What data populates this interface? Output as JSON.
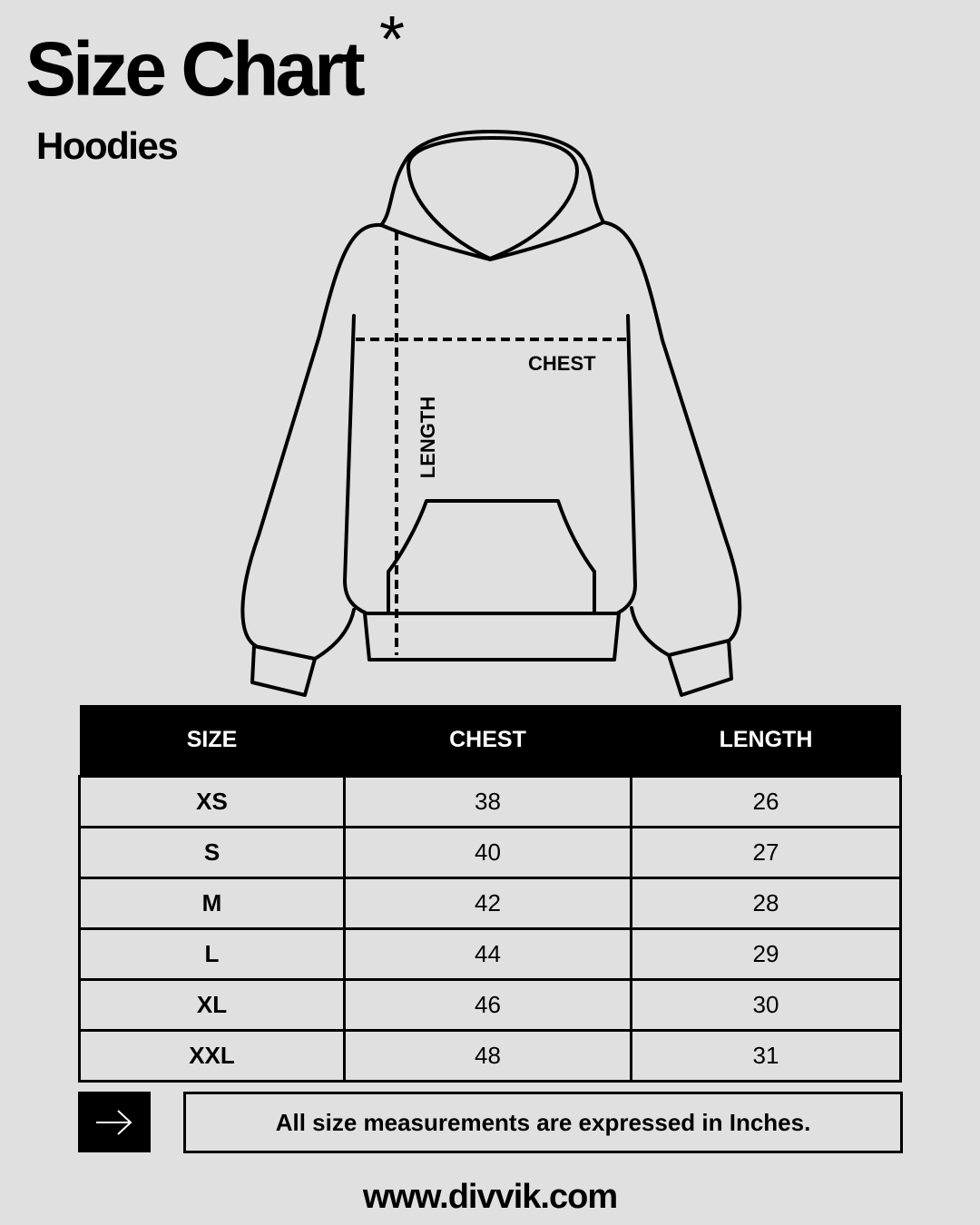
{
  "header": {
    "title": "Size Chart",
    "asterisk": "*",
    "subtitle": "Hoodies"
  },
  "diagram": {
    "chest_label": "CHEST",
    "length_label": "LENGTH"
  },
  "table": {
    "columns": [
      "SIZE",
      "CHEST",
      "LENGTH"
    ],
    "rows": [
      {
        "size": "XS",
        "chest": "38",
        "length": "26"
      },
      {
        "size": "S",
        "chest": "40",
        "length": "27"
      },
      {
        "size": "M",
        "chest": "42",
        "length": "28"
      },
      {
        "size": "L",
        "chest": "44",
        "length": "29"
      },
      {
        "size": "XL",
        "chest": "46",
        "length": "30"
      },
      {
        "size": "XXL",
        "chest": "48",
        "length": "31"
      }
    ]
  },
  "footer": {
    "arrow_icon": "arrow-right-icon",
    "note": "All size measurements are expressed in Inches.",
    "url": "www.divvik.com"
  },
  "colors": {
    "background": "#e0e0e0",
    "ink": "#000000"
  }
}
